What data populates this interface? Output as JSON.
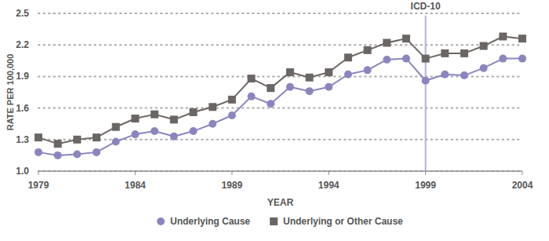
{
  "chart_data": {
    "type": "line",
    "x_label": "YEAR",
    "y_label": "RATE PER 100,000",
    "x": [
      1979,
      1980,
      1981,
      1982,
      1983,
      1984,
      1985,
      1986,
      1987,
      1988,
      1989,
      1990,
      1991,
      1992,
      1993,
      1994,
      1995,
      1996,
      1997,
      1998,
      1999,
      2000,
      2001,
      2002,
      2003,
      2004
    ],
    "series": [
      {
        "name": "Underlying Cause",
        "color": "#8b85bf",
        "marker": "circle",
        "values": [
          1.18,
          1.15,
          1.16,
          1.18,
          1.28,
          1.35,
          1.38,
          1.33,
          1.38,
          1.45,
          1.53,
          1.71,
          1.64,
          1.8,
          1.76,
          1.8,
          1.92,
          1.96,
          2.06,
          2.07,
          1.86,
          1.92,
          1.91,
          1.98,
          2.07,
          2.07
        ]
      },
      {
        "name": "Underlying or Other Cause",
        "color": "#6b6664",
        "marker": "square",
        "values": [
          1.32,
          1.26,
          1.3,
          1.32,
          1.42,
          1.5,
          1.54,
          1.49,
          1.56,
          1.61,
          1.68,
          1.88,
          1.79,
          1.94,
          1.89,
          1.94,
          2.08,
          2.15,
          2.22,
          2.26,
          2.07,
          2.12,
          2.12,
          2.19,
          2.28,
          2.26
        ]
      }
    ],
    "xlim": [
      1979,
      2004
    ],
    "xticks": [
      1979,
      1984,
      1989,
      1994,
      1999,
      2004
    ],
    "ylim": [
      1.0,
      2.5
    ],
    "yticks": [
      {
        "value": 1,
        "label": "1.0"
      },
      1.3,
      1.6,
      1.9,
      2.2,
      2.5
    ],
    "grid": true,
    "legend": "bottom",
    "annotations": [
      {
        "x": 1999,
        "label": "ICD-10",
        "color": "#b3aedb"
      }
    ]
  }
}
